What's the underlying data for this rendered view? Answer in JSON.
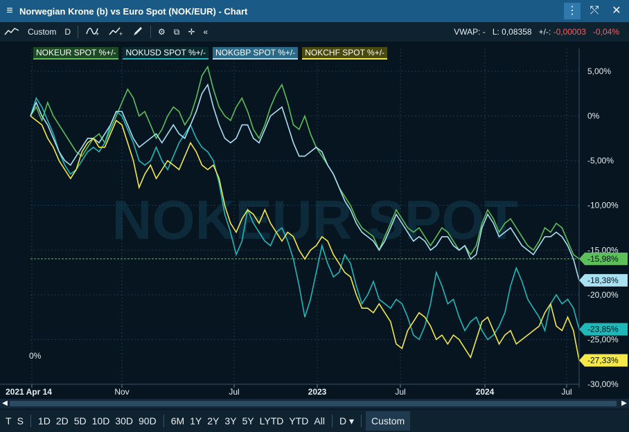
{
  "window": {
    "title": "Norwegian Krone (b) vs Euro Spot (NOK/EUR) - Chart"
  },
  "toolbar": {
    "range_label": "Custom",
    "interval_label": "D",
    "vwap_text": "VWAP: -",
    "last_text": "L: 0,08358",
    "change_label": "+/-:",
    "change_abs": "-0,00003",
    "change_pct": "-0,04%"
  },
  "periods": {
    "items": [
      "T",
      "S",
      "1D",
      "2D",
      "5D",
      "10D",
      "30D",
      "90D",
      "6M",
      "1Y",
      "2Y",
      "3Y",
      "5Y",
      "LYTD",
      "YTD",
      "All"
    ],
    "interval": "D",
    "active": "Custom"
  },
  "watermark": "NOKEUR SPOT",
  "chart_data": {
    "type": "line",
    "x_ticks": [
      "2021 Apr 14",
      "Nov",
      "Jul",
      "2023",
      "Jul",
      "2024",
      "Jul"
    ],
    "y_ticks": [
      "5,00%",
      "0%",
      "-5,00%",
      "-10,00%",
      "-15,00%",
      "-20,00%",
      "-25,00%",
      "-30,00%"
    ],
    "ylim": [
      -30,
      6
    ],
    "bottom_left_label": "0%",
    "reference_line": -15.98,
    "series": [
      {
        "name": "NOKEUR SPOT %+/-",
        "color": "#5cbf5a",
        "last_label": "-15,98%",
        "values": [
          0,
          1,
          -0.5,
          1.5,
          0,
          -1,
          -2,
          -3,
          -4,
          -4.5,
          -3.5,
          -2.5,
          -2,
          -3,
          -1.5,
          0,
          1.5,
          3,
          2,
          0,
          0.5,
          -1,
          -2.5,
          -1.5,
          0,
          1,
          0.5,
          -1,
          0,
          2,
          4.5,
          5.5,
          3,
          1,
          0,
          -0.5,
          1,
          2,
          0.5,
          -1.5,
          -2.5,
          -1,
          1,
          2.5,
          3.5,
          1.5,
          -1,
          -1.5,
          0,
          -2,
          -3.5,
          -4.5,
          -5.5,
          -6.5,
          -8,
          -9,
          -10,
          -11.5,
          -12.5,
          -13,
          -13.5,
          -15,
          -13.5,
          -12,
          -10.5,
          -11.5,
          -12.5,
          -13,
          -12.5,
          -13.5,
          -14.5,
          -13.5,
          -12.5,
          -13,
          -14,
          -15,
          -14.5,
          -15.5,
          -14.5,
          -12,
          -10.5,
          -11.5,
          -13,
          -12,
          -11.5,
          -12.5,
          -13.5,
          -14.5,
          -15,
          -14,
          -12.5,
          -13,
          -12,
          -12.5,
          -14,
          -15.5,
          -15.98
        ]
      },
      {
        "name": "NOKUSD SPOT %+/-",
        "color": "#1fb8b8",
        "last_label": "-23,85%",
        "values": [
          0,
          2,
          1,
          -0.5,
          -2,
          -4,
          -5.5,
          -6.5,
          -6,
          -5,
          -4,
          -3.5,
          -4,
          -3,
          -1,
          0.5,
          0,
          -1.5,
          -3,
          -5,
          -5.5,
          -5,
          -3.5,
          -5,
          -6,
          -4.5,
          -3,
          -2,
          -1,
          -2.5,
          -3.5,
          -4,
          -5,
          -7.5,
          -11,
          -13,
          -15.5,
          -14,
          -10.5,
          -12,
          -13,
          -14,
          -14.5,
          -13,
          -12.5,
          -14,
          -16,
          -19,
          -22.5,
          -20.5,
          -17.5,
          -14.5,
          -16.5,
          -18,
          -17.5,
          -15.5,
          -16.5,
          -19,
          -21,
          -20,
          -18.5,
          -20.5,
          -21,
          -21.5,
          -20.5,
          -21,
          -22.5,
          -24.5,
          -25,
          -23.5,
          -21,
          -17.5,
          -19,
          -21,
          -20.5,
          -22.5,
          -24,
          -23,
          -22.5,
          -24,
          -25,
          -24.5,
          -23.5,
          -22,
          -19,
          -17,
          -18.5,
          -20.5,
          -21.5,
          -22.5,
          -24,
          -21,
          -20,
          -21,
          -20.5,
          -21.5,
          -23.85
        ]
      },
      {
        "name": "NOKGBP SPOT %+/-",
        "color": "#a9e0f2",
        "last_label": "-18,38%",
        "values": [
          0,
          1.5,
          0,
          -1,
          -2.5,
          -4,
          -5,
          -5.5,
          -4.5,
          -3.5,
          -2.5,
          -2.5,
          -3,
          -2,
          -1,
          0.5,
          0.5,
          -1,
          -2.5,
          -3.5,
          -3,
          -2.5,
          -2,
          -3,
          -2,
          -1,
          -2,
          -2.5,
          -1,
          0.5,
          2.5,
          3.5,
          1,
          -1,
          -2.5,
          -3,
          -2.5,
          -1,
          -1,
          -2.5,
          -3,
          -1.5,
          0,
          0.5,
          1,
          -1,
          -3,
          -4.5,
          -4.5,
          -4,
          -3.5,
          -4,
          -5.5,
          -6.5,
          -8,
          -9.5,
          -10.5,
          -12,
          -13,
          -13.5,
          -14,
          -15,
          -14,
          -12.5,
          -11,
          -12,
          -13,
          -14,
          -13.5,
          -14,
          -15,
          -14.5,
          -13.5,
          -13.5,
          -14.5,
          -15,
          -14.5,
          -16,
          -15.5,
          -12.5,
          -11,
          -12,
          -13.5,
          -13,
          -12.5,
          -13.5,
          -14.5,
          -15,
          -15.5,
          -14.5,
          -13.5,
          -13.5,
          -13,
          -13.5,
          -14.5,
          -16,
          -18.38
        ]
      },
      {
        "name": "NOKCHF SPOT %+/-",
        "color": "#f5e84a",
        "last_label": "-27,33%",
        "values": [
          0,
          -0.5,
          -1,
          -2.5,
          -3.5,
          -5,
          -6,
          -7,
          -6,
          -4,
          -3,
          -2.5,
          -3.5,
          -3.5,
          -2,
          -0.5,
          -1,
          -3,
          -5,
          -8,
          -6.5,
          -5.5,
          -7,
          -6,
          -5,
          -5.5,
          -6,
          -4.5,
          -3,
          -4,
          -5.5,
          -6,
          -5.5,
          -7,
          -10,
          -12,
          -13,
          -11.5,
          -10.5,
          -11,
          -12,
          -10.5,
          -12,
          -13,
          -14,
          -13,
          -13.5,
          -15,
          -16,
          -15,
          -14.5,
          -13.5,
          -14,
          -15.5,
          -16.5,
          -17.5,
          -18,
          -20,
          -21.5,
          -21.5,
          -22,
          -21,
          -22,
          -23,
          -25.5,
          -26,
          -24,
          -23,
          -22,
          -22.5,
          -23.5,
          -25,
          -24.5,
          -25.5,
          -24.5,
          -25,
          -26,
          -27,
          -25,
          -23,
          -22.5,
          -24,
          -25.5,
          -24.5,
          -24,
          -25.5,
          -25,
          -24.5,
          -24,
          -23.5,
          -22,
          -21,
          -23.5,
          -24,
          -22.5,
          -24,
          -27.33
        ]
      }
    ]
  }
}
